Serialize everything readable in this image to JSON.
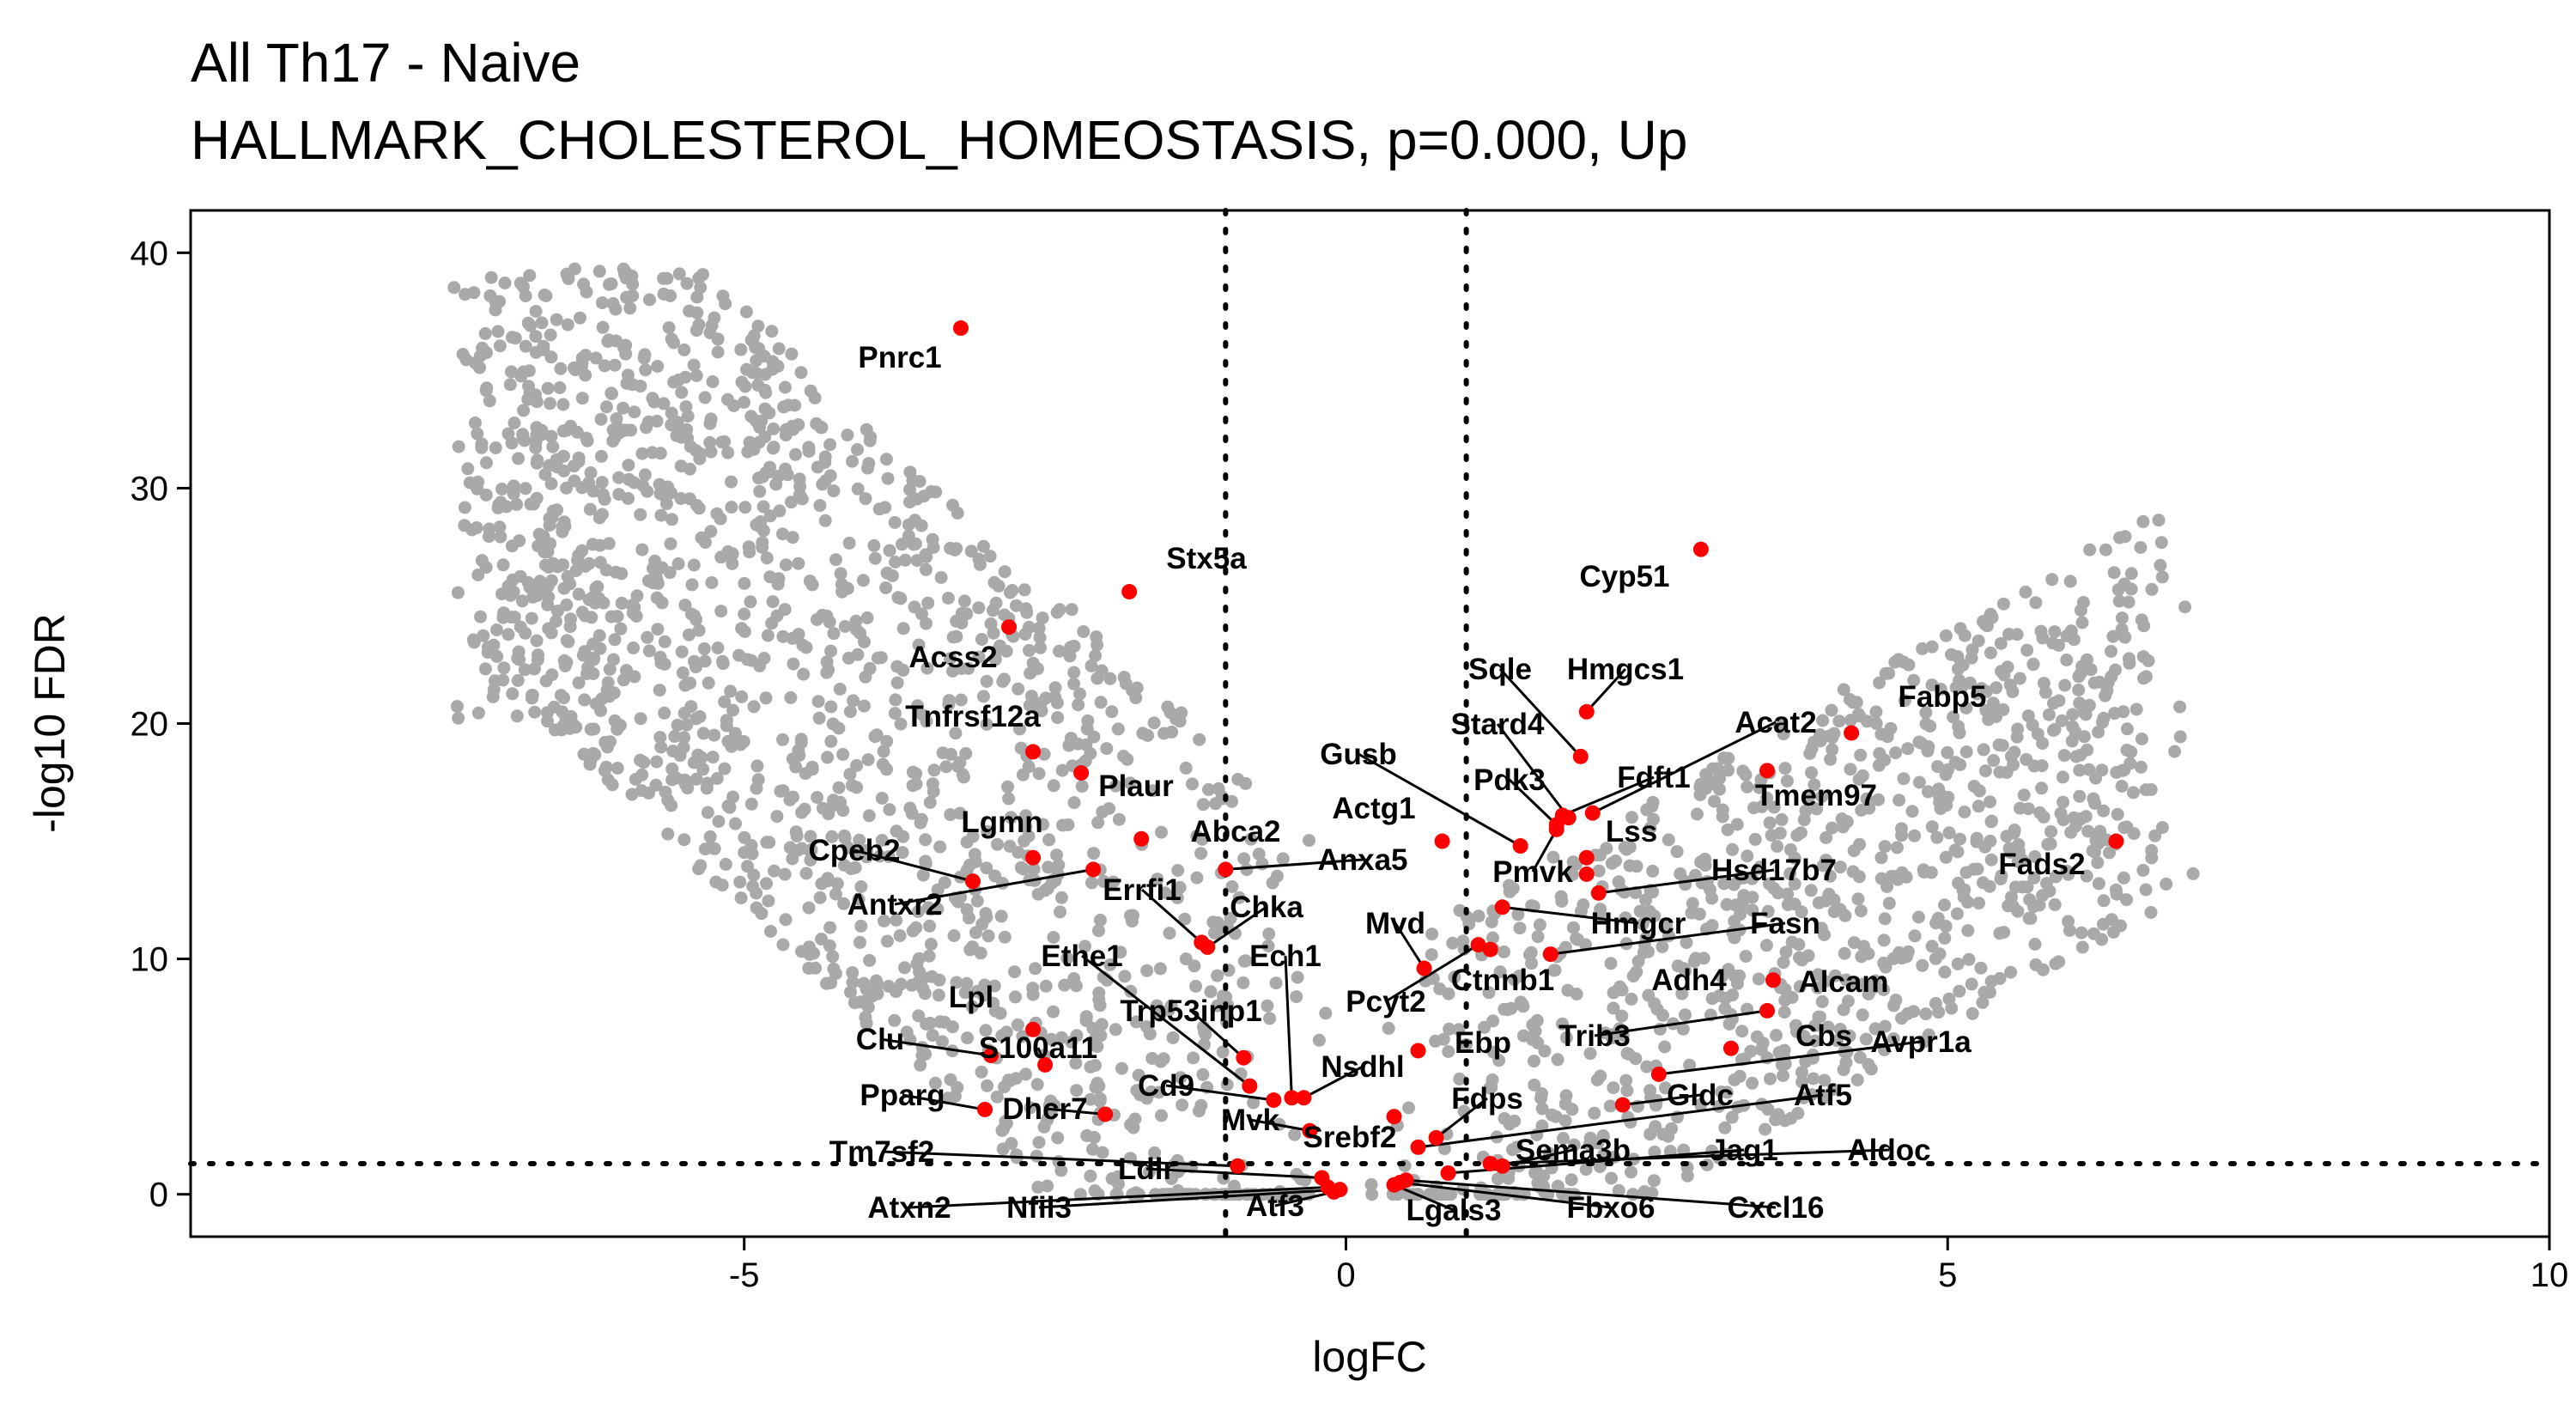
{
  "chart_data": {
    "type": "scatter",
    "title": "All Th17 - Naive",
    "subtitle": "HALLMARK_CHOLESTEROL_HOMEOSTASIS, p=0.000, Up",
    "xlabel": "logFC",
    "ylabel": "-log10 FDR",
    "xlim": [
      -9.6,
      10.0
    ],
    "ylim": [
      -1.8,
      41.8
    ],
    "x_ticks": [
      -5,
      0,
      5,
      10
    ],
    "y_ticks": [
      0,
      10,
      20,
      30,
      40
    ],
    "grid": false,
    "thresholds": {
      "logFC": [
        -1,
        1
      ],
      "neg_log10_fdr": 1.3
    },
    "colors": {
      "background_genes": "#a9a9a9",
      "highlight_genes": "#ff0000",
      "threshold_lines": "#000000"
    },
    "series": [
      {
        "name": "HALLMARK_CHOLESTEROL_HOMEOSTASIS",
        "points": [
          {
            "gene": "Pnrc1",
            "x": -3.2,
            "y": 36.8
          },
          {
            "gene": "Stx5a",
            "x": -1.8,
            "y": 25.6
          },
          {
            "gene": "Acss2",
            "x": -2.8,
            "y": 24.1
          },
          {
            "gene": "Tnfrsf12a",
            "x": -2.6,
            "y": 18.8
          },
          {
            "gene": "Plaur",
            "x": -2.2,
            "y": 17.9
          },
          {
            "gene": "Abca2",
            "x": -1.7,
            "y": 15.1
          },
          {
            "gene": "Lgmn",
            "x": -2.6,
            "y": 14.3
          },
          {
            "gene": "Cpeb2",
            "x": -3.1,
            "y": 13.3
          },
          {
            "gene": "Antxr2",
            "x": -2.1,
            "y": 13.8
          },
          {
            "gene": "Anxa5",
            "x": -1.0,
            "y": 13.8
          },
          {
            "gene": "Errfi1",
            "x": -1.2,
            "y": 10.7
          },
          {
            "gene": "Chka",
            "x": -1.15,
            "y": 10.5
          },
          {
            "gene": "Ethe1",
            "x": -0.8,
            "y": 4.6
          },
          {
            "gene": "Ech1",
            "x": -0.45,
            "y": 4.1
          },
          {
            "gene": "Trp53inp1",
            "x": -0.85,
            "y": 5.8
          },
          {
            "gene": "Nsdhl",
            "x": -0.35,
            "y": 4.1
          },
          {
            "gene": "Lpl",
            "x": -2.6,
            "y": 7.0
          },
          {
            "gene": "Clu",
            "x": -2.95,
            "y": 5.9
          },
          {
            "gene": "S100a11",
            "x": -2.5,
            "y": 5.5
          },
          {
            "gene": "Cd9",
            "x": -0.6,
            "y": 4.0
          },
          {
            "gene": "Pparg",
            "x": -3.0,
            "y": 3.6
          },
          {
            "gene": "Dhcr7",
            "x": -2.0,
            "y": 3.4
          },
          {
            "gene": "Mvk",
            "x": -0.3,
            "y": 2.7
          },
          {
            "gene": "Srebf2",
            "x": 0.4,
            "y": 3.3
          },
          {
            "gene": "Tm7sf2",
            "x": -0.9,
            "y": 1.2
          },
          {
            "gene": "Ldlr",
            "x": -0.2,
            "y": 0.7
          },
          {
            "gene": "Atxn2",
            "x": -0.15,
            "y": 0.3
          },
          {
            "gene": "Nfil3",
            "x": -0.05,
            "y": 0.2
          },
          {
            "gene": "Atf3",
            "x": -0.1,
            "y": 0.1
          },
          {
            "gene": "Lgals3",
            "x": 0.4,
            "y": 0.4
          },
          {
            "gene": "Fbxo6",
            "x": 0.45,
            "y": 0.5
          },
          {
            "gene": "Cxcl16",
            "x": 0.5,
            "y": 0.6
          },
          {
            "gene": "Cyp51",
            "x": 2.95,
            "y": 27.4
          },
          {
            "gene": "Sqle",
            "x": 1.95,
            "y": 18.6
          },
          {
            "gene": "Hmgcs1",
            "x": 2.0,
            "y": 20.5
          },
          {
            "gene": "Fabp5",
            "x": 4.2,
            "y": 19.6
          },
          {
            "gene": "Stard4",
            "x": 1.85,
            "y": 16.0
          },
          {
            "gene": "Acat2",
            "x": 2.05,
            "y": 16.2
          },
          {
            "gene": "Tmem97",
            "x": 3.5,
            "y": 18.0
          },
          {
            "gene": "Gusb",
            "x": 1.45,
            "y": 14.8
          },
          {
            "gene": "Pdk3",
            "x": 1.75,
            "y": 15.7
          },
          {
            "gene": "Fdft1",
            "x": 1.8,
            "y": 16.1
          },
          {
            "gene": "Actg1",
            "x": 0.8,
            "y": 15.0
          },
          {
            "gene": "Lss",
            "x": 2.0,
            "y": 14.3
          },
          {
            "gene": "Pmvk",
            "x": 1.75,
            "y": 15.5
          },
          {
            "gene": "Hsd17b7",
            "x": 2.1,
            "y": 12.8
          },
          {
            "gene": "Fads2",
            "x": 6.4,
            "y": 15.0
          },
          {
            "gene": "Mvd",
            "x": 0.65,
            "y": 9.6
          },
          {
            "gene": "Hmgcr",
            "x": 1.3,
            "y": 12.2
          },
          {
            "gene": "Fasn",
            "x": 1.7,
            "y": 10.2
          },
          {
            "gene": "Pcyt2",
            "x": 1.1,
            "y": 10.6
          },
          {
            "gene": "Ctnnb1",
            "x": 1.2,
            "y": 10.4
          },
          {
            "gene": "Adh4",
            "x": 2.0,
            "y": 13.6
          },
          {
            "gene": "Alcam",
            "x": 3.55,
            "y": 9.1
          },
          {
            "gene": "Ebp",
            "x": 0.6,
            "y": 6.1
          },
          {
            "gene": "Trib3",
            "x": 3.5,
            "y": 7.8
          },
          {
            "gene": "Cbs",
            "x": 3.2,
            "y": 6.2
          },
          {
            "gene": "Avpr1a",
            "x": 2.6,
            "y": 5.1
          },
          {
            "gene": "Fdps",
            "x": 0.75,
            "y": 2.4
          },
          {
            "gene": "Gldc",
            "x": 2.3,
            "y": 3.8
          },
          {
            "gene": "Atf5",
            "x": 0.6,
            "y": 2.0
          },
          {
            "gene": "Sema3b",
            "x": 1.3,
            "y": 1.2
          },
          {
            "gene": "Jag1",
            "x": 0.85,
            "y": 0.9
          },
          {
            "gene": "Aldoc",
            "x": 1.2,
            "y": 1.3
          }
        ]
      }
    ]
  }
}
